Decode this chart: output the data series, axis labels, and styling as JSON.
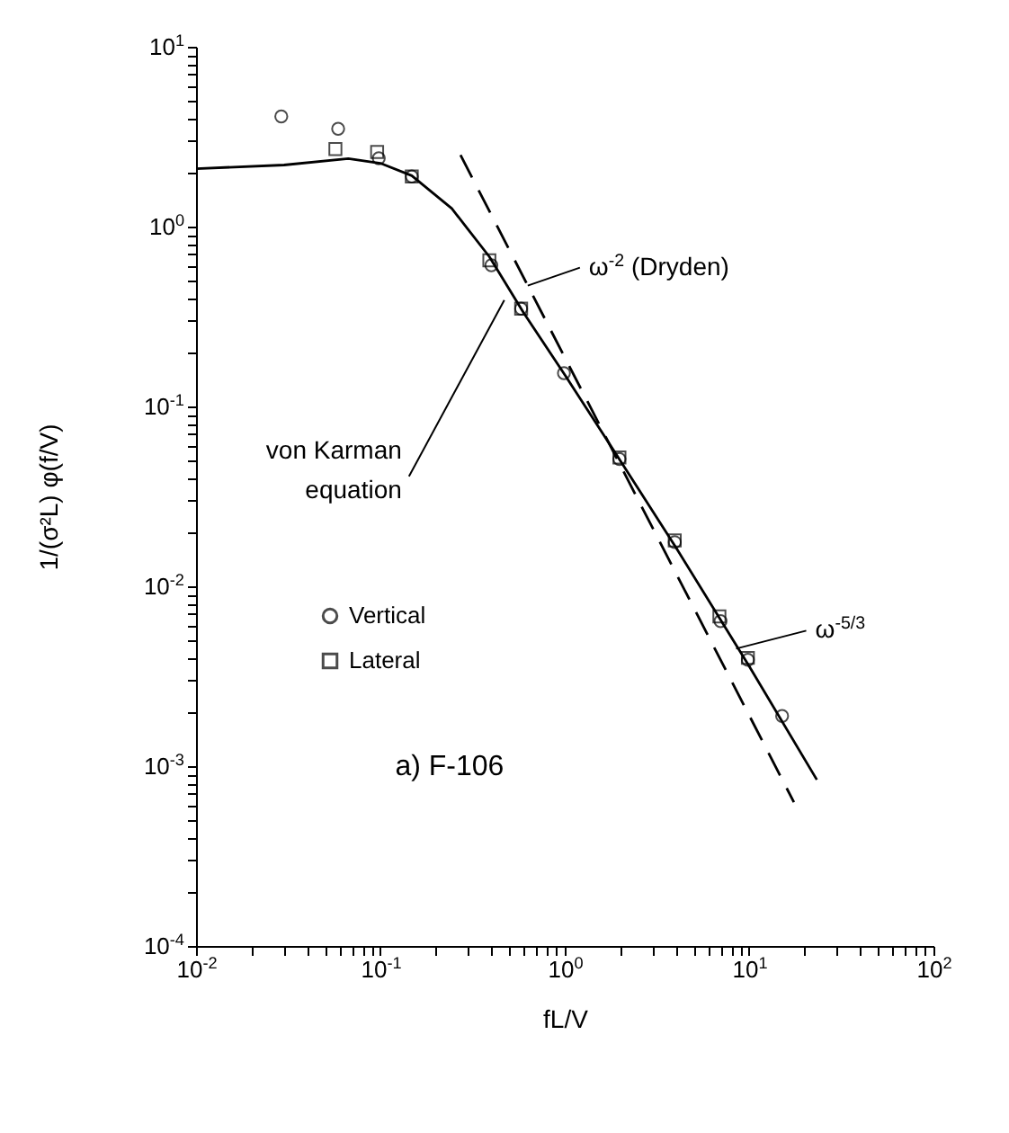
{
  "chart_data": {
    "type": "scatter",
    "xlabel": "fL/V",
    "ylabel": "1/(σ²L) φ(f/V)",
    "log": "xy",
    "xlim": [
      0.01,
      100
    ],
    "ylim": [
      0.0001,
      10
    ],
    "xticks": [
      {
        "value": 0.01,
        "label": "10$^{-2}$"
      },
      {
        "value": 0.02,
        "label": null
      },
      {
        "value": 0.03,
        "label": null
      },
      {
        "value": 0.04,
        "label": null
      },
      {
        "value": 0.05,
        "label": null
      },
      {
        "value": 0.06,
        "label": null
      },
      {
        "value": 0.07,
        "label": null
      },
      {
        "value": 0.08,
        "label": null
      },
      {
        "value": 0.09,
        "label": null
      },
      {
        "value": 0.1,
        "label": "10$^{-1}$"
      },
      {
        "value": 0.2,
        "label": null
      },
      {
        "value": 0.3,
        "label": null
      },
      {
        "value": 0.4,
        "label": null
      },
      {
        "value": 0.5,
        "label": null
      },
      {
        "value": 0.6,
        "label": null
      },
      {
        "value": 0.7,
        "label": null
      },
      {
        "value": 0.8,
        "label": null
      },
      {
        "value": 0.9,
        "label": null
      },
      {
        "value": 1,
        "label": "10$^{0}$"
      },
      {
        "value": 2,
        "label": null
      },
      {
        "value": 3,
        "label": null
      },
      {
        "value": 4,
        "label": null
      },
      {
        "value": 5,
        "label": null
      },
      {
        "value": 6,
        "label": null
      },
      {
        "value": 7,
        "label": null
      },
      {
        "value": 8,
        "label": null
      },
      {
        "value": 9,
        "label": null
      },
      {
        "value": 10,
        "label": "10$^{1}$"
      },
      {
        "value": 20,
        "label": null
      },
      {
        "value": 30,
        "label": null
      },
      {
        "value": 40,
        "label": null
      },
      {
        "value": 50,
        "label": null
      },
      {
        "value": 60,
        "label": null
      },
      {
        "value": 70,
        "label": null
      },
      {
        "value": 80,
        "label": null
      },
      {
        "value": 90,
        "label": null
      },
      {
        "value": 100,
        "label": "10$^{2}$"
      }
    ],
    "yticks": [
      {
        "value": 0.0001,
        "label": "10$^{-4}$"
      },
      {
        "value": 0.0002,
        "label": null
      },
      {
        "value": 0.0003,
        "label": null
      },
      {
        "value": 0.0004,
        "label": null
      },
      {
        "value": 0.0005,
        "label": null
      },
      {
        "value": 0.0006,
        "label": null
      },
      {
        "value": 0.0007,
        "label": null
      },
      {
        "value": 0.0008,
        "label": null
      },
      {
        "value": 0.0009,
        "label": null
      },
      {
        "value": 0.001,
        "label": "10$^{-3}$"
      },
      {
        "value": 0.002,
        "label": null
      },
      {
        "value": 0.003,
        "label": null
      },
      {
        "value": 0.004,
        "label": null
      },
      {
        "value": 0.005,
        "label": null
      },
      {
        "value": 0.006,
        "label": null
      },
      {
        "value": 0.007,
        "label": null
      },
      {
        "value": 0.008,
        "label": null
      },
      {
        "value": 0.009,
        "label": null
      },
      {
        "value": 0.01,
        "label": "10$^{-2}$"
      },
      {
        "value": 0.02,
        "label": null
      },
      {
        "value": 0.03,
        "label": null
      },
      {
        "value": 0.04,
        "label": null
      },
      {
        "value": 0.05,
        "label": null
      },
      {
        "value": 0.06,
        "label": null
      },
      {
        "value": 0.07,
        "label": null
      },
      {
        "value": 0.08,
        "label": null
      },
      {
        "value": 0.09,
        "label": null
      },
      {
        "value": 0.1,
        "label": "10$^{-1}$"
      },
      {
        "value": 0.2,
        "label": null
      },
      {
        "value": 0.3,
        "label": null
      },
      {
        "value": 0.4,
        "label": null
      },
      {
        "value": 0.5,
        "label": null
      },
      {
        "value": 0.6,
        "label": null
      },
      {
        "value": 0.7,
        "label": null
      },
      {
        "value": 0.8,
        "label": null
      },
      {
        "value": 0.9,
        "label": null
      },
      {
        "value": 1,
        "label": "10$^{0}$"
      },
      {
        "value": 2,
        "label": null
      },
      {
        "value": 3,
        "label": null
      },
      {
        "value": 4,
        "label": null
      },
      {
        "value": 5,
        "label": null
      },
      {
        "value": 6,
        "label": null
      },
      {
        "value": 7,
        "label": null
      },
      {
        "value": 8,
        "label": null
      },
      {
        "value": 9,
        "label": null
      },
      {
        "value": 10,
        "label": "10$^{1}$"
      }
    ],
    "legend": "left",
    "grid": false,
    "series": [
      {
        "type": "line",
        "color": "#000000",
        "line_style": "solid",
        "x": [
          0.01,
          0.03,
          0.067,
          0.1,
          0.148,
          0.244,
          0.39,
          0.6,
          1,
          2,
          4,
          10,
          23.3
        ],
        "values": [
          2.1,
          2.2,
          2.39,
          2.25,
          1.92,
          1.26,
          0.68,
          0.33,
          0.15,
          0.05,
          0.0165,
          0.0036,
          0.00084
        ]
      },
      {
        "type": "line",
        "color": "#000000",
        "line_style": "dashed",
        "x": [
          0.272,
          17.5
        ],
        "values": [
          2.5,
          0.00063
        ]
      },
      {
        "name": "Vertical",
        "type": "scatter",
        "marker": "circle",
        "color": "#000000",
        "x": [
          0.029,
          0.059,
          0.098,
          0.148,
          0.4,
          0.58,
          0.99,
          1.98,
          3.95,
          7.0,
          9.85,
          15.1
        ],
        "values": [
          4.1,
          3.5,
          2.4,
          1.9,
          0.61,
          0.35,
          0.153,
          0.051,
          0.0176,
          0.0064,
          0.0039,
          0.0019
        ]
      },
      {
        "name": "Lateral",
        "type": "scatter",
        "marker": "square",
        "color": "#000000",
        "x": [
          0.057,
          0.096,
          0.148,
          0.39,
          0.58,
          1.98,
          3.95,
          6.9,
          9.85
        ],
        "values": [
          2.7,
          2.6,
          1.9,
          0.65,
          0.35,
          0.052,
          0.018,
          0.0068,
          0.004
        ]
      }
    ],
    "annotations": [
      {
        "text": "ω$^{-2}$ (Dryden)",
        "x": 0.63,
        "y": 0.47
      },
      {
        "text": "von Karman equation",
        "x": 0.47,
        "y": 0.39
      },
      {
        "text": "ω$^{-5/3}$",
        "x": 8.5,
        "y": 0.0045
      },
      "a) F-106"
    ]
  }
}
